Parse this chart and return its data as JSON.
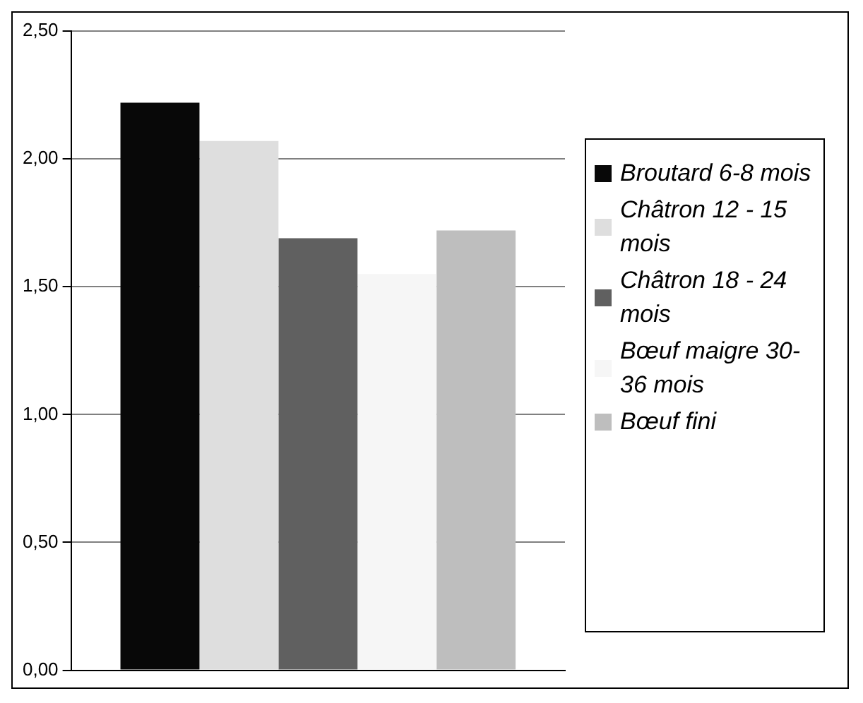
{
  "chart_data": {
    "type": "bar",
    "categories": [
      null
    ],
    "series": [
      {
        "name": "Broutard 6-8 mois",
        "color": "#080808",
        "values": [
          2.22
        ]
      },
      {
        "name": "Châtron 12 - 15 mois",
        "color": "#dedede",
        "values": [
          2.07
        ]
      },
      {
        "name": "Châtron 18 - 24 mois",
        "color": "#606060",
        "values": [
          1.69
        ]
      },
      {
        "name": "Bœuf maigre 30-36 mois",
        "color": "#f6f6f6",
        "values": [
          1.55
        ]
      },
      {
        "name": "Bœuf fini",
        "color": "#bebebe",
        "values": [
          1.72
        ]
      }
    ],
    "ylim": [
      0,
      2.5
    ],
    "yticks": [
      {
        "value": 0,
        "label": "0,00"
      },
      {
        "value": 0.5,
        "label": "0,50"
      },
      {
        "value": 1,
        "label": "1,00"
      },
      {
        "value": 1.5,
        "label": "1,50"
      },
      {
        "value": 2,
        "label": "2,00"
      },
      {
        "value": 2.5,
        "label": "2,50"
      }
    ],
    "grid": "y",
    "legend": "right"
  }
}
